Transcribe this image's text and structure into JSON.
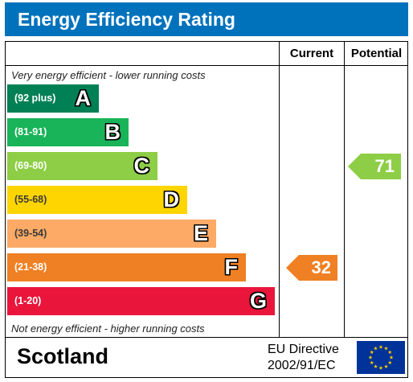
{
  "title": "Energy Efficiency Rating",
  "columns": {
    "current": "Current",
    "potential": "Potential"
  },
  "notes": {
    "top": "Very energy efficient - lower running costs",
    "bottom": "Not energy efficient - higher running costs"
  },
  "chart_data": {
    "type": "bar",
    "categories": [
      "A",
      "B",
      "C",
      "D",
      "E",
      "F",
      "G"
    ],
    "bands": [
      {
        "letter": "A",
        "range": "(92 plus)",
        "color": "#008054"
      },
      {
        "letter": "B",
        "range": "(81-91)",
        "color": "#19b459"
      },
      {
        "letter": "C",
        "range": "(69-80)",
        "color": "#8dce46"
      },
      {
        "letter": "D",
        "range": "(55-68)",
        "color": "#ffd500"
      },
      {
        "letter": "E",
        "range": "(39-54)",
        "color": "#fcaa65"
      },
      {
        "letter": "F",
        "range": "(21-38)",
        "color": "#ef8023"
      },
      {
        "letter": "G",
        "range": "(1-20)",
        "color": "#e9153b"
      }
    ],
    "current": {
      "value": "32",
      "band": "F",
      "color": "#ef8023"
    },
    "potential": {
      "value": "71",
      "band": "C",
      "color": "#8dce46"
    }
  },
  "footer": {
    "region": "Scotland",
    "directive_line1": "EU Directive",
    "directive_line2": "2002/91/EC"
  },
  "flag": {
    "color": "#003399",
    "star_color": "#ffcc00"
  }
}
